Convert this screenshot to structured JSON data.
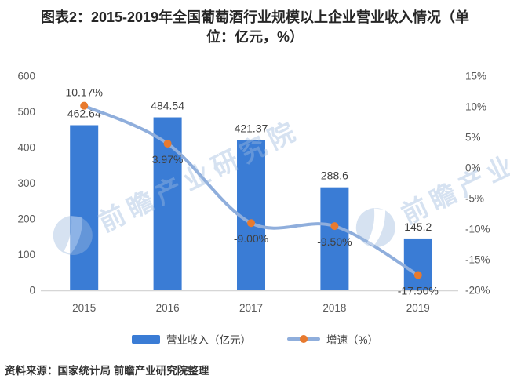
{
  "title": {
    "line1": "图表2：2015-2019年全国葡萄酒行业规模以上企业营业收入情况（单",
    "line2": "位：亿元，%）"
  },
  "chart_data": {
    "type": "bar+line",
    "categories": [
      "2015",
      "2016",
      "2017",
      "2018",
      "2019"
    ],
    "series": [
      {
        "name": "营业收入（亿元）",
        "type": "bar",
        "axis": "left",
        "values": [
          462.64,
          484.54,
          421.37,
          288.6,
          145.2
        ],
        "labels": [
          "462.64",
          "484.54",
          "421.37",
          "288.6",
          "145.2"
        ],
        "color": "#3A7CD5"
      },
      {
        "name": "增速（%）",
        "type": "line",
        "axis": "right",
        "values": [
          10.17,
          3.97,
          -9.0,
          -9.5,
          -17.5
        ],
        "labels": [
          "10.17%",
          "3.97%",
          "-9.00%",
          "-9.50%",
          "-17.50%"
        ],
        "color": "#8FAEDC",
        "marker_color": "#E87A2E"
      }
    ],
    "left_axis": {
      "min": 0,
      "max": 600,
      "ticks": [
        "600",
        "500",
        "400",
        "300",
        "200",
        "100",
        "0"
      ]
    },
    "right_axis": {
      "min": -20,
      "max": 15,
      "ticks": [
        "15%",
        "10%",
        "5%",
        "0%",
        "-5%",
        "-10%",
        "-15%",
        "-20%"
      ]
    },
    "grid": false,
    "legend_position": "bottom",
    "label_color": "#404040",
    "tick_color": "#595959",
    "axis_line_color": "#D6D6D6"
  },
  "watermark": {
    "text": "前瞻产业研究院"
  },
  "source": "资料来源：国家统计局 前瞻产业研究院整理"
}
